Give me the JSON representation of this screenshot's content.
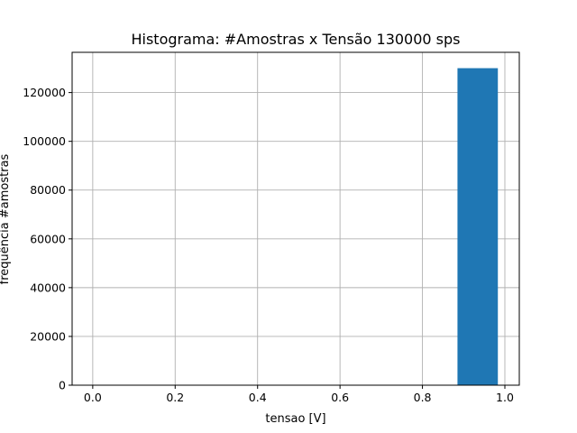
{
  "chart_data": {
    "type": "bar",
    "title": "Histograma: #Amostras x Tensão 130000 sps",
    "xlabel": "tensao [V]",
    "ylabel": "frequência #amostras",
    "xlim": [
      -0.05,
      1.035
    ],
    "ylim": [
      0,
      136500
    ],
    "x_ticks": [
      "0.0",
      "0.2",
      "0.4",
      "0.6",
      "0.8",
      "1.0"
    ],
    "y_ticks": [
      "0",
      "20000",
      "40000",
      "60000",
      "80000",
      "100000",
      "120000"
    ],
    "grid": true,
    "bars": [
      {
        "x0": 0.885,
        "x1": 0.983,
        "value": 130000
      }
    ],
    "bar_color": "#1f77b4"
  }
}
